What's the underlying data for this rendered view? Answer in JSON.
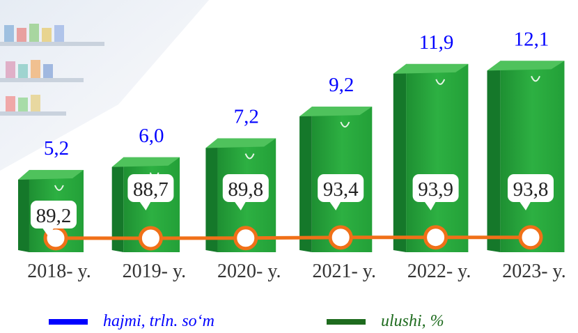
{
  "chart_data": {
    "type": "bar",
    "categories": [
      "2018- y.",
      "2019- y.",
      "2020- y.",
      "2021- y.",
      "2022- y.",
      "2023- y."
    ],
    "series": [
      {
        "name": "hajmi, trln. so‘m",
        "type": "bar",
        "values": [
          5.2,
          6.0,
          7.2,
          9.2,
          11.9,
          12.1
        ],
        "labels": [
          "5,2",
          "6,0",
          "7,2",
          "9,2",
          "11,9",
          "12,1"
        ]
      },
      {
        "name": "ulushi, %",
        "type": "line",
        "values": [
          89.2,
          88.7,
          89.8,
          93.4,
          93.9,
          93.8
        ],
        "labels": [
          "89,2",
          "88,7",
          "89,8",
          "93,4",
          "93,9",
          "93,8"
        ]
      }
    ],
    "legend": [
      {
        "label": "hajmi, trln. so‘m",
        "color": "#0000ff"
      },
      {
        "label": "ulushi, %",
        "color": "#1e6b1e"
      }
    ],
    "legend_position": "bottom",
    "grid": false,
    "colors": {
      "bag": "#27a43a",
      "bag_dark": "#15782a",
      "bag_light": "#4fc25c",
      "line": "#f07018",
      "bar_label": "#0000ff",
      "axis_label": "#333333"
    }
  }
}
